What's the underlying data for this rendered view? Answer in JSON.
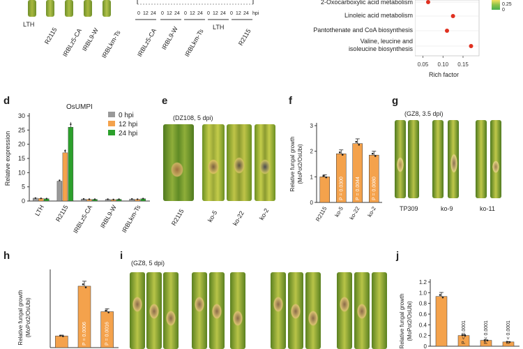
{
  "panel_letters": {
    "d": "d",
    "e": "e",
    "f": "f",
    "g": "g",
    "h": "h",
    "i": "i",
    "j": "j"
  },
  "top_left": {
    "leaf_labels": [
      "LTH",
      "R2115",
      "IRBLz5-CA",
      "IRBL9-W",
      "IRBLkm-Ts"
    ]
  },
  "top_middle": {
    "ticks": [
      "0",
      "12",
      "24",
      "0",
      "12",
      "24",
      "0",
      "12",
      "24",
      "0",
      "12",
      "24",
      "0",
      "12",
      "24"
    ],
    "unit": "hpi",
    "labels": [
      "IRBLz5-CA",
      "IRBL9-W",
      "IRBLkm-Ts",
      "LTH",
      "R2115"
    ]
  },
  "top_right": {
    "chart_data": {
      "type": "scatter",
      "categories": [
        "2-Oxocarboxylic acid metabolism",
        "Linoleic acid metabolism",
        "Pantothenate and CoA biosynthesis",
        "Valine, leucine and isoleucine biosynthesis"
      ],
      "x": [
        0.063,
        0.125,
        0.11,
        0.17
      ],
      "xticks": [
        "0.05",
        "0.10",
        "0.15"
      ],
      "xlim": [
        0.03,
        0.19
      ],
      "xlabel": "Rich factor",
      "legend_ticks": [
        "0.25",
        "0"
      ],
      "point_color": "#e03020"
    },
    "row_labels": {
      "oxo": "2-Oxocarboxylic acid metabolism",
      "lin": "Linoleic acid metabolism",
      "pan": "Pantothenate and CoA biosynthesis",
      "val1": "Valine, leucine and",
      "val2": "isoleucine biosynthesis"
    }
  },
  "panel_d": {
    "chart_data": {
      "type": "bar",
      "title": "OsUMPI",
      "ylabel": "Relative expression",
      "ylim": [
        0,
        30
      ],
      "yticks": [
        "0",
        "5",
        "10",
        "15",
        "20",
        "25",
        "30"
      ],
      "categories": [
        "LTH",
        "R2115",
        "IRBLz5-CA",
        "IRBL9-W",
        "IRBLkm-Ts"
      ],
      "series": [
        {
          "name": "0 hpi",
          "color": "#999999",
          "values": [
            1.0,
            7.0,
            0.7,
            0.6,
            0.7
          ]
        },
        {
          "name": "12 hpi",
          "color": "#f4a24c",
          "values": [
            0.9,
            17.0,
            0.6,
            0.5,
            0.6
          ]
        },
        {
          "name": "24 hpi",
          "color": "#2ca02c",
          "values": [
            0.8,
            26.0,
            0.6,
            0.6,
            0.8
          ]
        }
      ],
      "legend": "top-right"
    }
  },
  "panel_e": {
    "title": "(DZ108, 5 dpi)",
    "leaf_labels": [
      "R2115",
      "ko-5",
      "ko-22",
      "ko-2"
    ]
  },
  "panel_f": {
    "chart_data": {
      "type": "bar",
      "ylabel1": "Relative fungal growth",
      "ylabel2": "(MoPot2/OsUbi)",
      "ylim": [
        0,
        3
      ],
      "yticks": [
        "0",
        "1",
        "2",
        "3"
      ],
      "categories": [
        "R2115",
        "ko-5",
        "ko-22",
        "ko-2"
      ],
      "values": [
        1.0,
        1.9,
        2.3,
        1.85
      ],
      "annotations": [
        "",
        "P = 0.0300",
        "P = 0.0044",
        "P = 0.0080"
      ],
      "color": "#f4a24c"
    }
  },
  "panel_g": {
    "title": "(GZ8, 3.5 dpi)",
    "leaf_labels": [
      "TP309",
      "ko-9",
      "ko-11"
    ]
  },
  "panel_h": {
    "chart_data": {
      "type": "bar",
      "ylabel1": "Relative fungal growth",
      "ylabel2": "(MoPot2/OsUbi)",
      "ylim": [
        0,
        6.5
      ],
      "values": [
        1.0,
        5.3,
        3.1
      ],
      "annotations": [
        "",
        "P = 0.0006",
        "P = 0.0016"
      ],
      "color": "#f4a24c"
    }
  },
  "panel_i": {
    "title": "(GZ8, 5 dpi)"
  },
  "panel_j": {
    "chart_data": {
      "type": "bar",
      "ylabel1": "Relative fungal growth",
      "ylabel2": "(MoPot2/OsUbi)",
      "ylim": [
        0,
        1.2
      ],
      "yticks": [
        "0",
        "0.2",
        "0.4",
        "0.6",
        "0.8",
        "1.0",
        "1.2"
      ],
      "values": [
        0.93,
        0.2,
        0.11,
        0.08
      ],
      "annotations": [
        "",
        "P < 0.0001",
        "P < 0.0001",
        "P < 0.0001"
      ],
      "color": "#f4a24c"
    }
  }
}
